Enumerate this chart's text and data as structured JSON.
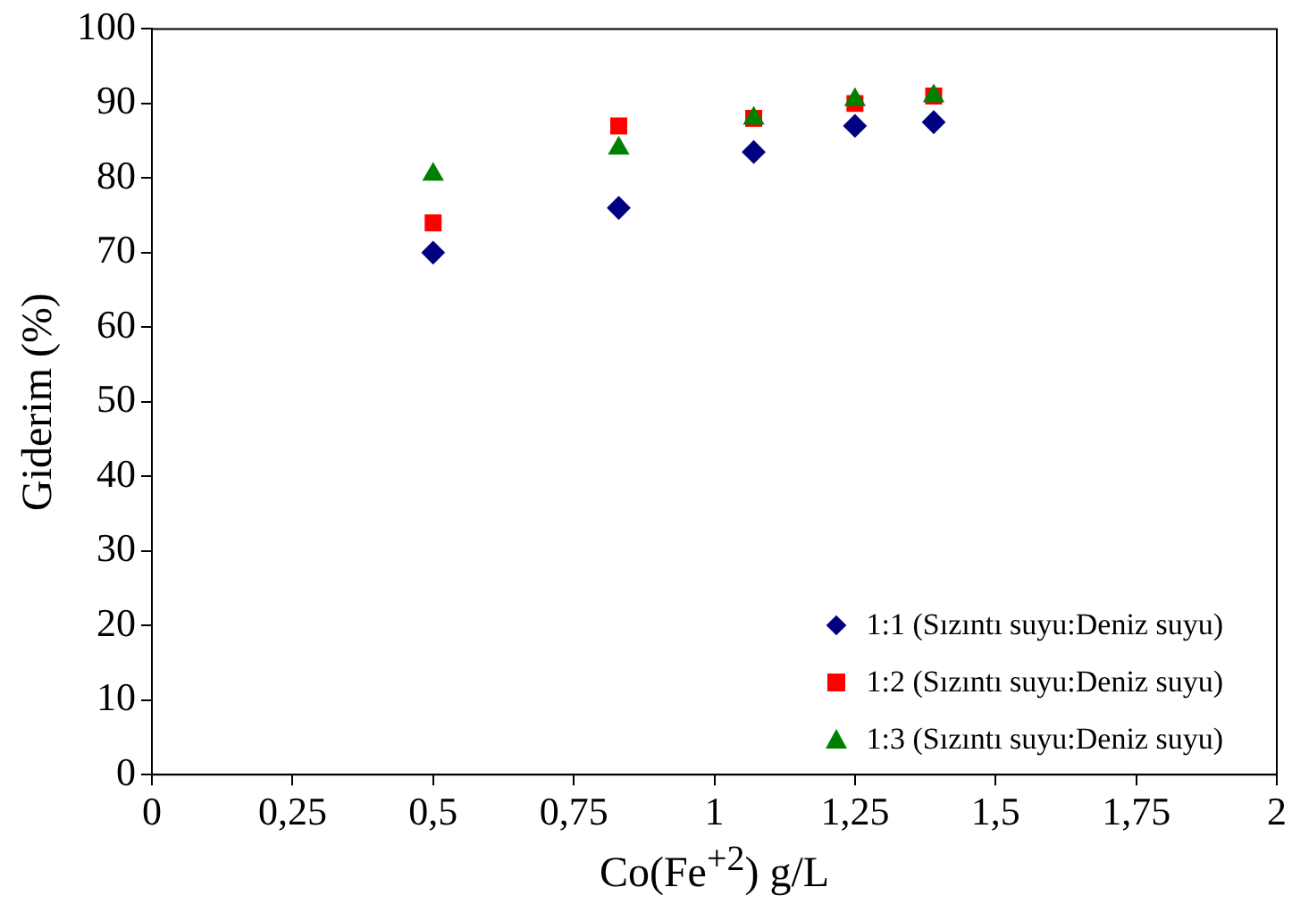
{
  "chart_data": {
    "type": "scatter",
    "xlabel": "Co(Fe$^{+2}$) g/L",
    "ylabel": "Giderim (%)",
    "xlim": [
      0,
      2
    ],
    "xticks": [
      0,
      {
        "value": 0.25,
        "label": "0,25"
      },
      {
        "value": 0.5,
        "label": "0,5"
      },
      {
        "value": 0.75,
        "label": "0,75"
      },
      1,
      {
        "value": 1.25,
        "label": "1,25"
      },
      {
        "value": 1.5,
        "label": "1,5"
      },
      {
        "value": 1.75,
        "label": "1,75"
      },
      2
    ],
    "ylim": [
      0,
      100
    ],
    "yticks": [
      0,
      10,
      20,
      30,
      40,
      50,
      60,
      70,
      80,
      90,
      100
    ],
    "grid": false,
    "legend": "bottom right",
    "x": [
      0.5,
      0.83,
      1.07,
      1.25,
      1.39
    ],
    "series": [
      {
        "name": "1:1 (Sızıntı suyu:Deniz suyu)",
        "color": "#000080",
        "marker": "diamond",
        "values": [
          70,
          76,
          83.5,
          87,
          87.5
        ]
      },
      {
        "name": "1:2 (Sızıntı suyu:Deniz suyu)",
        "color": "#ff0000",
        "marker": "square",
        "values": [
          74,
          87,
          88,
          90,
          91
        ]
      },
      {
        "name": "1:3 (Sızıntı suyu:Deniz suyu)",
        "color": "#008000",
        "marker": "triangle",
        "values": [
          80.5,
          84,
          88,
          90.5,
          91
        ]
      }
    ]
  }
}
